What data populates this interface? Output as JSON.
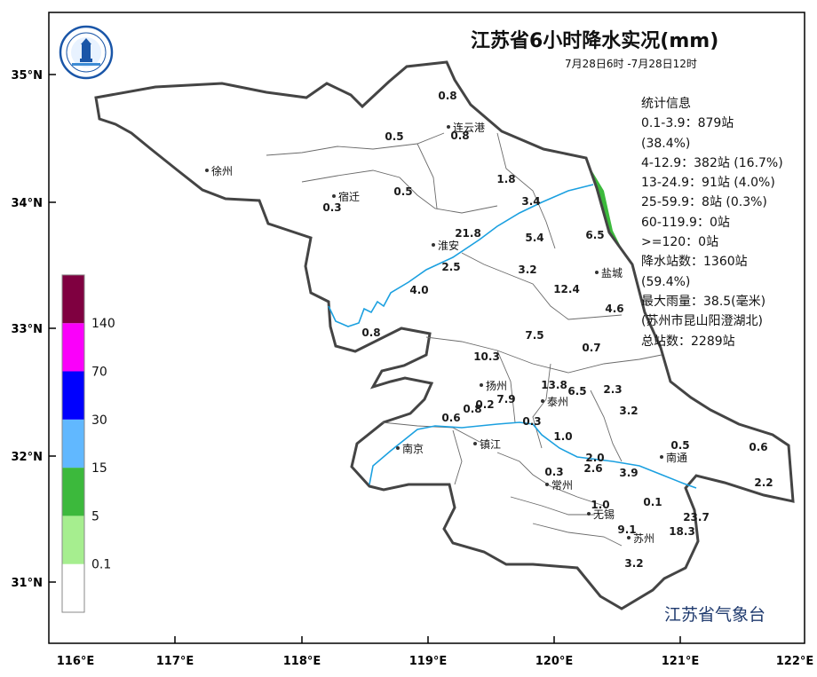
{
  "title": "江苏省6小时降水实况(mm)",
  "time_range": "7月28日6时 -7月28日12时",
  "stats": {
    "header": "统计信息",
    "lines": [
      "0.1-3.9：879站",
      "(38.4%)",
      "4-12.9：382站 (16.7%)",
      "13-24.9：91站 (4.0%)",
      "25-59.9：8站 (0.3%)",
      "60-119.9：0站",
      ">=120：0站",
      "降水站数：1360站",
      "(59.4%)",
      "最大雨量：38.5(毫米)",
      "(苏州市昆山阳澄湖北)",
      "总站数：2289站"
    ]
  },
  "organization": "江苏省气象台",
  "axes": {
    "lon_labels": [
      "116°E",
      "117°E",
      "118°E",
      "119°E",
      "120°E",
      "121°E",
      "122°E"
    ],
    "lat_labels": [
      "31°N",
      "32°N",
      "33°N",
      "34°N",
      "35°N"
    ]
  },
  "legend": {
    "ticks": [
      "0.1",
      "5",
      "15",
      "30",
      "70",
      "140"
    ],
    "colors": [
      "#ffffff",
      "#a6ee8f",
      "#3cb93c",
      "#61b8ff",
      "#0000fe",
      "#fa00fa",
      "#7f0040"
    ]
  },
  "cities": [
    {
      "name": "徐州"
    },
    {
      "name": "宿迁"
    },
    {
      "name": "连云港"
    },
    {
      "name": "淮安"
    },
    {
      "name": "盐城"
    },
    {
      "name": "扬州"
    },
    {
      "name": "泰州"
    },
    {
      "name": "南京"
    },
    {
      "name": "镇江"
    },
    {
      "name": "南通"
    },
    {
      "name": "常州"
    },
    {
      "name": "无锡"
    },
    {
      "name": "苏州"
    }
  ],
  "rain_values": [
    "0.8",
    "0.8",
    "0.5",
    "0.5",
    "0.3",
    "1.8",
    "3.4",
    "21.8",
    "5.4",
    "6.5",
    "2.5",
    "3.2",
    "12.4",
    "4.0",
    "4.6",
    "0.8",
    "7.5",
    "0.7",
    "10.3",
    "13.8",
    "6.5",
    "2.3",
    "7.9",
    "0.2",
    "0.8",
    "0.6",
    "0.3",
    "3.2",
    "1.0",
    "0.5",
    "0.6",
    "2.0",
    "0.3",
    "2.6",
    "3.9",
    "2.2",
    "1.0",
    "0.1",
    "23.7",
    "9.1",
    "18.3",
    "3.2"
  ]
}
